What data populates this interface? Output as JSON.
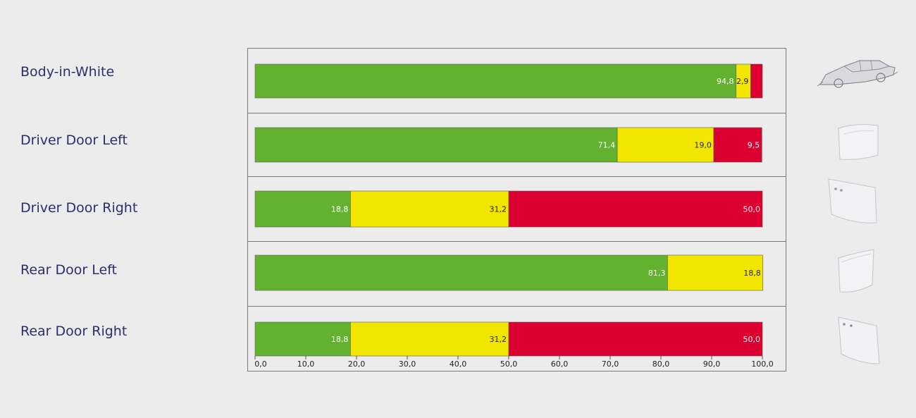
{
  "chart_data": {
    "type": "bar",
    "stacked": true,
    "orientation": "horizontal",
    "categories": [
      "Body-in-White",
      "Driver Door Left",
      "Driver Door Right",
      "Rear Door Left",
      "Rear Door Right"
    ],
    "series": [
      {
        "color": "#63b22f",
        "values": [
          94.8,
          71.4,
          18.8,
          81.3,
          18.8
        ]
      },
      {
        "color": "#f2e600",
        "values": [
          2.9,
          19.0,
          31.2,
          18.8,
          31.2
        ]
      },
      {
        "color": "#dc0030",
        "values": [
          2.3,
          9.5,
          50.0,
          0,
          50.0
        ]
      }
    ],
    "data_labels": [
      [
        "94,8",
        "2,9",
        ""
      ],
      [
        "71,4",
        "19,0",
        "9,5"
      ],
      [
        "18,8",
        "31,2",
        "50,0"
      ],
      [
        "81,3",
        "18,8",
        ""
      ],
      [
        "18,8",
        "31,2",
        "50,0"
      ]
    ],
    "xlim": [
      0,
      100
    ],
    "x_ticks": [
      "0,0",
      "10,0",
      "20,0",
      "30,0",
      "40,0",
      "50,0",
      "60,0",
      "70,0",
      "80,0",
      "90,0",
      "100,0"
    ],
    "grid": false,
    "legend": "none",
    "thumbnails": [
      "car-body-icon",
      "door-panel-icon",
      "door-panel-icon",
      "door-panel-icon",
      "door-panel-icon"
    ]
  }
}
